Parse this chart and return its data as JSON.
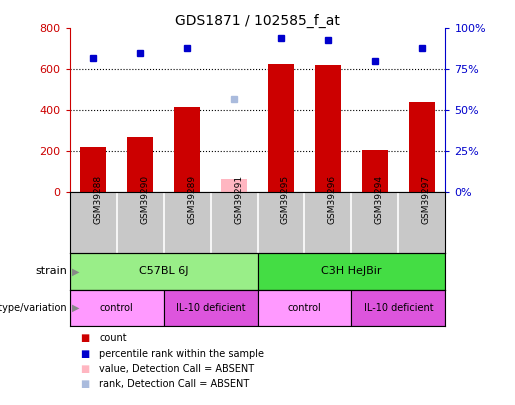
{
  "title": "GDS1871 / 102585_f_at",
  "samples": [
    "GSM39288",
    "GSM39290",
    "GSM39289",
    "GSM39291",
    "GSM39295",
    "GSM39296",
    "GSM39294",
    "GSM39297"
  ],
  "counts": [
    220,
    270,
    415,
    null,
    625,
    620,
    205,
    440
  ],
  "counts_absent": [
    null,
    null,
    null,
    65,
    null,
    null,
    null,
    null
  ],
  "percentile_ranks": [
    82,
    85,
    88,
    null,
    94,
    93,
    80,
    88
  ],
  "percentile_ranks_absent": [
    null,
    null,
    null,
    57,
    null,
    null,
    null,
    null
  ],
  "ylim_left": [
    0,
    800
  ],
  "ylim_right": [
    0,
    100
  ],
  "yticks_left": [
    0,
    200,
    400,
    600,
    800
  ],
  "yticks_right": [
    0,
    25,
    50,
    75,
    100
  ],
  "strain_groups": [
    {
      "label": "C57BL 6J",
      "start": 0,
      "end": 4,
      "color": "#99EE88"
    },
    {
      "label": "C3H HeJBir",
      "start": 4,
      "end": 8,
      "color": "#44DD44"
    }
  ],
  "genotype_groups": [
    {
      "label": "control",
      "start": 0,
      "end": 2,
      "color": "#FF99FF"
    },
    {
      "label": "IL-10 deficient",
      "start": 2,
      "end": 4,
      "color": "#DD55DD"
    },
    {
      "label": "control",
      "start": 4,
      "end": 6,
      "color": "#FF99FF"
    },
    {
      "label": "IL-10 deficient",
      "start": 6,
      "end": 8,
      "color": "#DD55DD"
    }
  ],
  "bar_color": "#CC0000",
  "bar_absent_color": "#FFB6C1",
  "dot_color": "#0000CC",
  "dot_absent_color": "#AABBDD",
  "bar_width": 0.55,
  "tick_label_color_left": "#CC0000",
  "tick_label_color_right": "#0000CC",
  "background_color": "#ffffff",
  "sample_box_color": "#C8C8C8",
  "legend_items": [
    {
      "color": "#CC0000",
      "label": "count"
    },
    {
      "color": "#0000CC",
      "label": "percentile rank within the sample"
    },
    {
      "color": "#FFB6C1",
      "label": "value, Detection Call = ABSENT"
    },
    {
      "color": "#AABBDD",
      "label": "rank, Detection Call = ABSENT"
    }
  ]
}
